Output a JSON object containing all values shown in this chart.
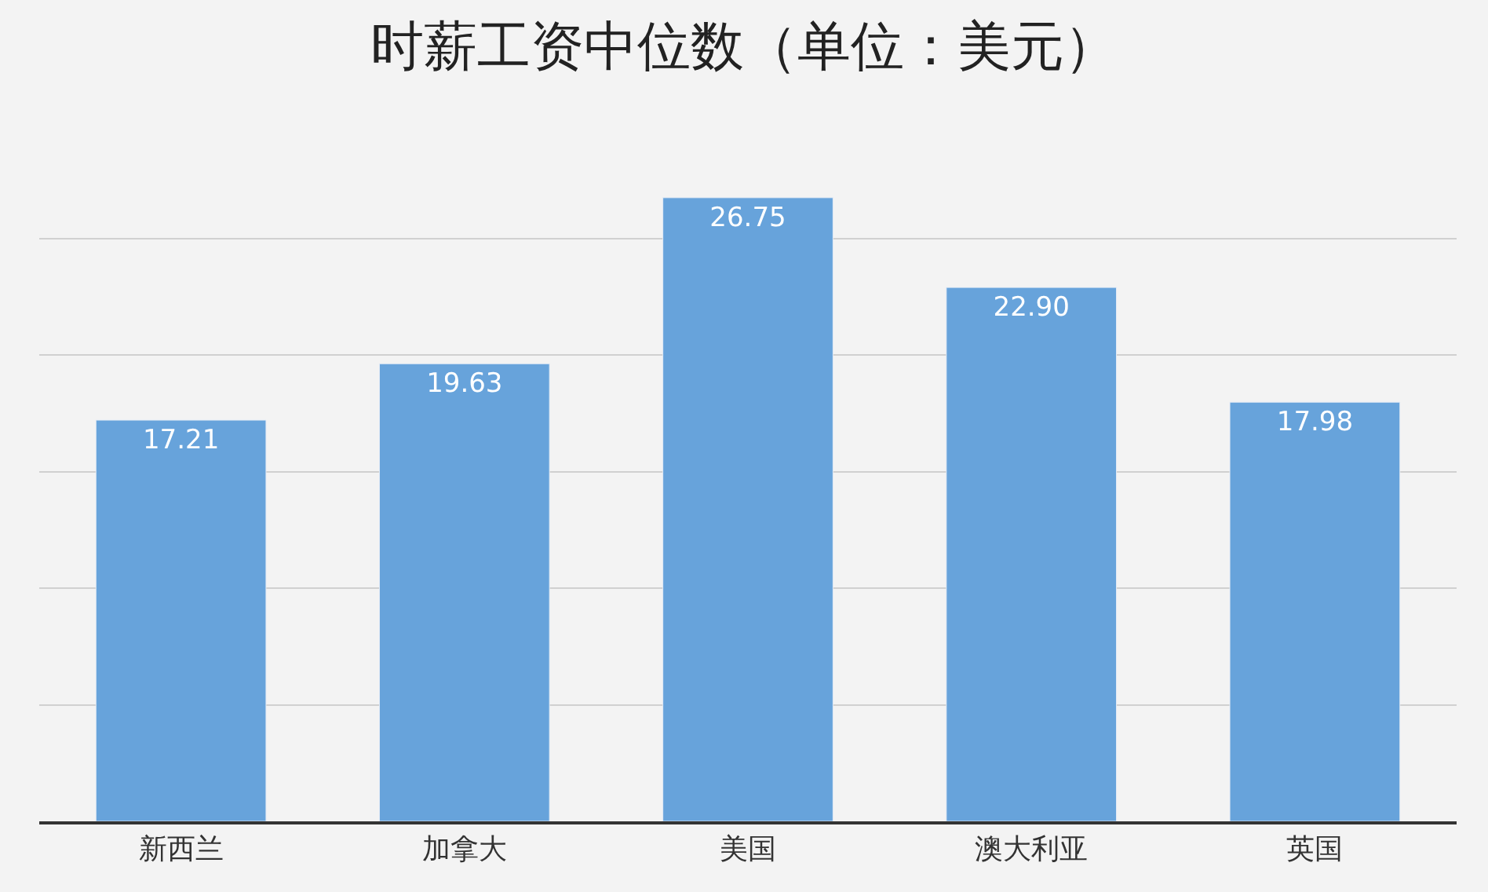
{
  "chart_data": {
    "type": "bar",
    "title": "时薪工资中位数（单位：美元）",
    "categories": [
      "新西兰",
      "加拿大",
      "美国",
      "澳大利亚",
      "英国"
    ],
    "values": [
      17.21,
      19.63,
      26.75,
      22.9,
      17.98
    ],
    "value_labels": [
      "17.21",
      "19.63",
      "26.75",
      "22.90",
      "17.98"
    ],
    "color": "#67a3db",
    "grid": "y",
    "tick_labels": "x",
    "legend": false
  }
}
